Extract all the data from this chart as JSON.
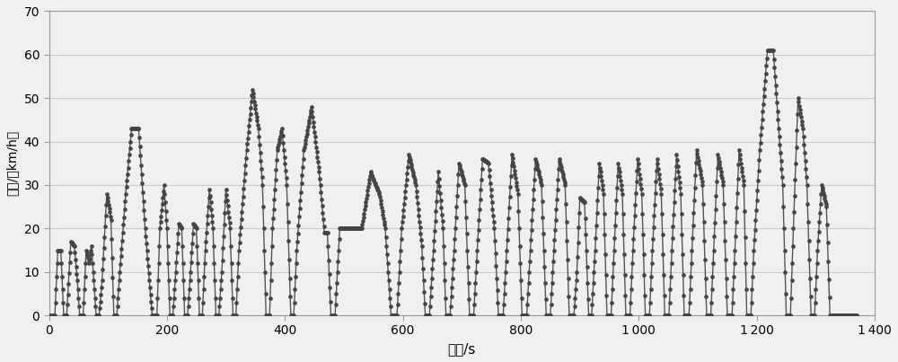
{
  "title": "",
  "xlabel": "时间/s",
  "ylabel": "车速/（km/h）",
  "xlim": [
    0,
    1400
  ],
  "ylim": [
    0,
    70
  ],
  "xticks": [
    0,
    200,
    400,
    600,
    800,
    1000,
    1200,
    1400
  ],
  "xtick_labels": [
    "0",
    "200",
    "400",
    "600",
    "800",
    "1 000",
    "1 200",
    "1 400"
  ],
  "yticks": [
    0,
    10,
    20,
    30,
    40,
    50,
    60,
    70
  ],
  "line_color": "#555555",
  "marker_color": "#444444",
  "marker_size": 3.0,
  "linewidth": 1.0,
  "bg_color": "#f0f0f0",
  "grid_color": "#cccccc",
  "grid_linewidth": 0.8,
  "xlabel_fontsize": 11,
  "ylabel_fontsize": 10
}
